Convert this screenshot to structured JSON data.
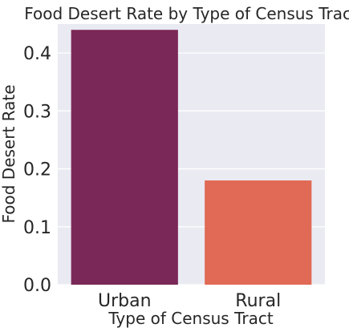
{
  "chart_data": {
    "type": "bar",
    "title": "Food Desert Rate by Type of Census Tract",
    "xlabel": "Type of Census Tract",
    "ylabel": "Food Desert Rate",
    "categories": [
      "Urban",
      "Rural"
    ],
    "values": [
      0.44,
      0.18
    ],
    "ylim": [
      0,
      0.45
    ],
    "yticks": [
      "0.0",
      "0.1",
      "0.2",
      "0.3",
      "0.4"
    ],
    "grid": true,
    "colors": [
      "#7a2857",
      "#e06a55"
    ],
    "background": "#eaeaf2"
  }
}
